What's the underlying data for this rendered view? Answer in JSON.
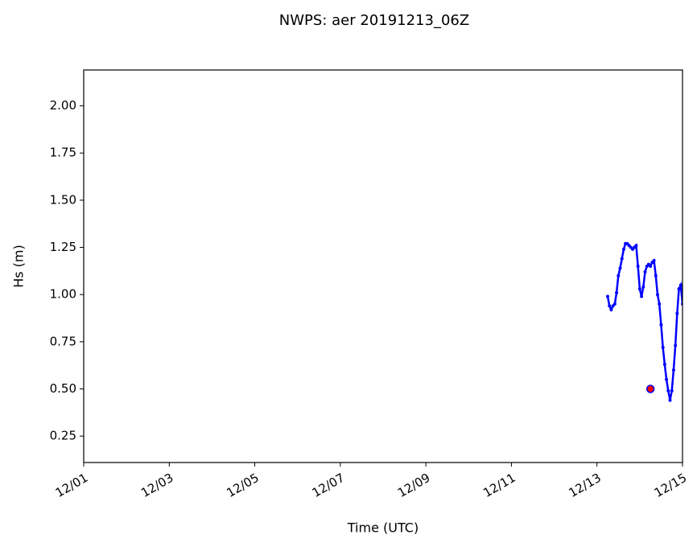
{
  "chart_data": {
    "type": "line",
    "title": "NWPS: aer 20191213_06Z",
    "x_label": "Time (UTC)",
    "y_label": "Hs (m)",
    "xlim": [
      0,
      336
    ],
    "xticks": [
      {
        "value": 0,
        "label": "12/01"
      },
      {
        "value": 48,
        "label": "12/03"
      },
      {
        "value": 96,
        "label": "12/05"
      },
      {
        "value": 144,
        "label": "12/07"
      },
      {
        "value": 192,
        "label": "12/09"
      },
      {
        "value": 240,
        "label": "12/11"
      },
      {
        "value": 288,
        "label": "12/13"
      },
      {
        "value": 336,
        "label": "12/15"
      }
    ],
    "ylim": [
      0.11,
      2.19
    ],
    "yticks": [
      0.25,
      {
        "value": 0.5,
        "label": "0.50"
      },
      0.75,
      {
        "value": 1.0,
        "label": "1.00"
      },
      1.25,
      {
        "value": 1.5,
        "label": "1.50"
      },
      1.75,
      {
        "value": 2.0,
        "label": "2.00"
      }
    ],
    "series": [
      {
        "mode": "line",
        "color": "#0000ff",
        "x": [
          294,
          295,
          296,
          297,
          298,
          299,
          300,
          301,
          302,
          303,
          304,
          305,
          306,
          307,
          308,
          309,
          310,
          311,
          312,
          313,
          314,
          315,
          316,
          317,
          318,
          319,
          320,
          321,
          322,
          323,
          324,
          325,
          326,
          327,
          328,
          329,
          330,
          331,
          332,
          333,
          334,
          335,
          336
        ],
        "values": [
          0.99,
          0.94,
          0.92,
          0.94,
          0.95,
          1.01,
          1.1,
          1.14,
          1.19,
          1.24,
          1.27,
          1.27,
          1.26,
          1.25,
          1.24,
          1.25,
          1.26,
          1.15,
          1.03,
          0.99,
          1.04,
          1.12,
          1.15,
          1.16,
          1.15,
          1.17,
          1.18,
          1.1,
          1.0,
          0.95,
          0.84,
          0.72,
          0.63,
          0.55,
          0.49,
          0.44,
          0.49,
          0.6,
          0.73,
          0.9,
          1.03,
          1.05,
          0.95
        ]
      },
      {
        "mode": "scatter",
        "color": "#ff0000",
        "edgecolor": "#0000ff",
        "x": [
          318
        ],
        "values": [
          0.5
        ]
      }
    ]
  }
}
